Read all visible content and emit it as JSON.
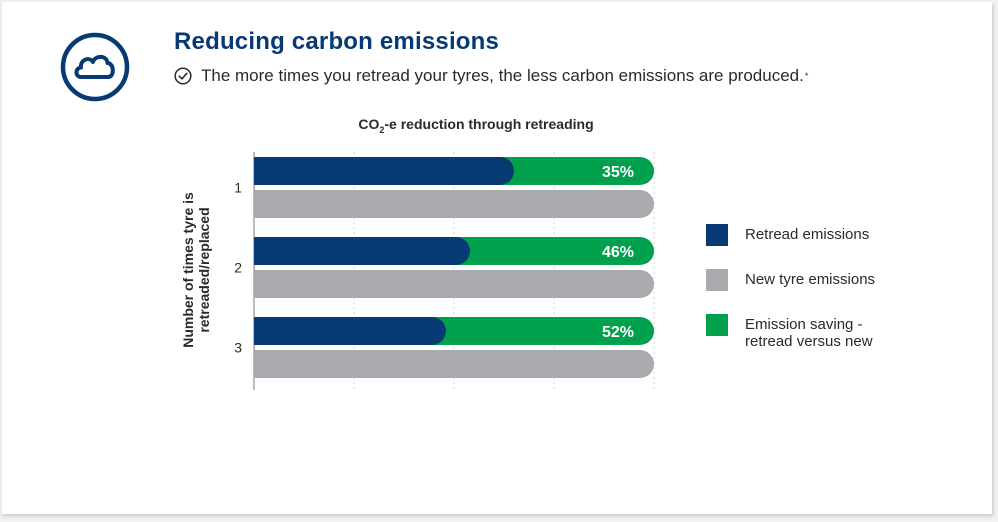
{
  "header": {
    "title": "Reducing carbon emissions",
    "subtitle": "The more times you retread your tyres, the less carbon emissions are produced.",
    "footnote_mark": "*",
    "badge_icon": "cloud-icon",
    "check_icon": "check-circle-icon"
  },
  "colors": {
    "brand_navy": "#073a72",
    "retread": "#073a72",
    "new_tyre": "#a8aaad",
    "saving": "#00a04c",
    "grid": "#d0d2d5",
    "axis": "#8c8f93"
  },
  "chart_data": {
    "type": "bar",
    "orientation": "horizontal",
    "title_parts": {
      "prefix": "CO",
      "subscript": "2",
      "suffix": "-e reduction through retreading"
    },
    "ylabel": "Number of times tyre is retreaded/replaced",
    "categories": [
      "1",
      "2",
      "3"
    ],
    "series": [
      {
        "name": "Retread emissions",
        "values": [
          65,
          54,
          48
        ]
      },
      {
        "name": "Emission saving - retread versus new",
        "values": [
          35,
          46,
          52
        ],
        "labels": [
          "35%",
          "46%",
          "52%"
        ]
      },
      {
        "name": "New tyre emissions",
        "values": [
          100,
          100,
          100
        ]
      }
    ],
    "xlim": [
      0,
      100
    ],
    "grid": "vertical-dashed",
    "legend_placement": "right"
  },
  "legend": [
    {
      "label": "Retread emissions",
      "color": "#073a72"
    },
    {
      "label": "New tyre emissions",
      "color": "#a8aaad"
    },
    {
      "label": "Emission saving -\nretread versus new",
      "color": "#00a04c"
    }
  ]
}
